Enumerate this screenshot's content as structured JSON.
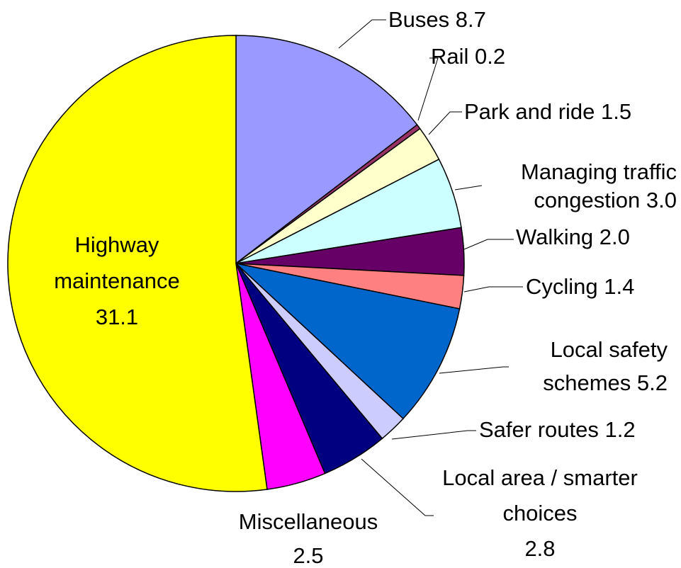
{
  "chart_data": {
    "type": "pie",
    "categories": [
      "Buses",
      "Rail",
      "Park and ride",
      "Managing traffic congestion",
      "Walking",
      "Cycling",
      "Local safety schemes",
      "Safer routes",
      "Local area / smarter choices",
      "Miscellaneous",
      "Highway maintenance"
    ],
    "values": [
      8.7,
      0.2,
      1.5,
      3.0,
      2.0,
      1.4,
      5.2,
      1.2,
      2.8,
      2.5,
      31.1
    ],
    "value_labels": [
      "8.7",
      "0.2",
      "1.5",
      "3.0",
      "2.0",
      "1.4",
      "5.2",
      "1.2",
      "2.8",
      "2.5",
      "31.1"
    ],
    "colors": [
      "#9999ff",
      "#993366",
      "#ffffcc",
      "#ccffff",
      "#660066",
      "#ff8080",
      "#0066cc",
      "#ccccff",
      "#000080",
      "#ff00ff",
      "#ffff00"
    ]
  }
}
